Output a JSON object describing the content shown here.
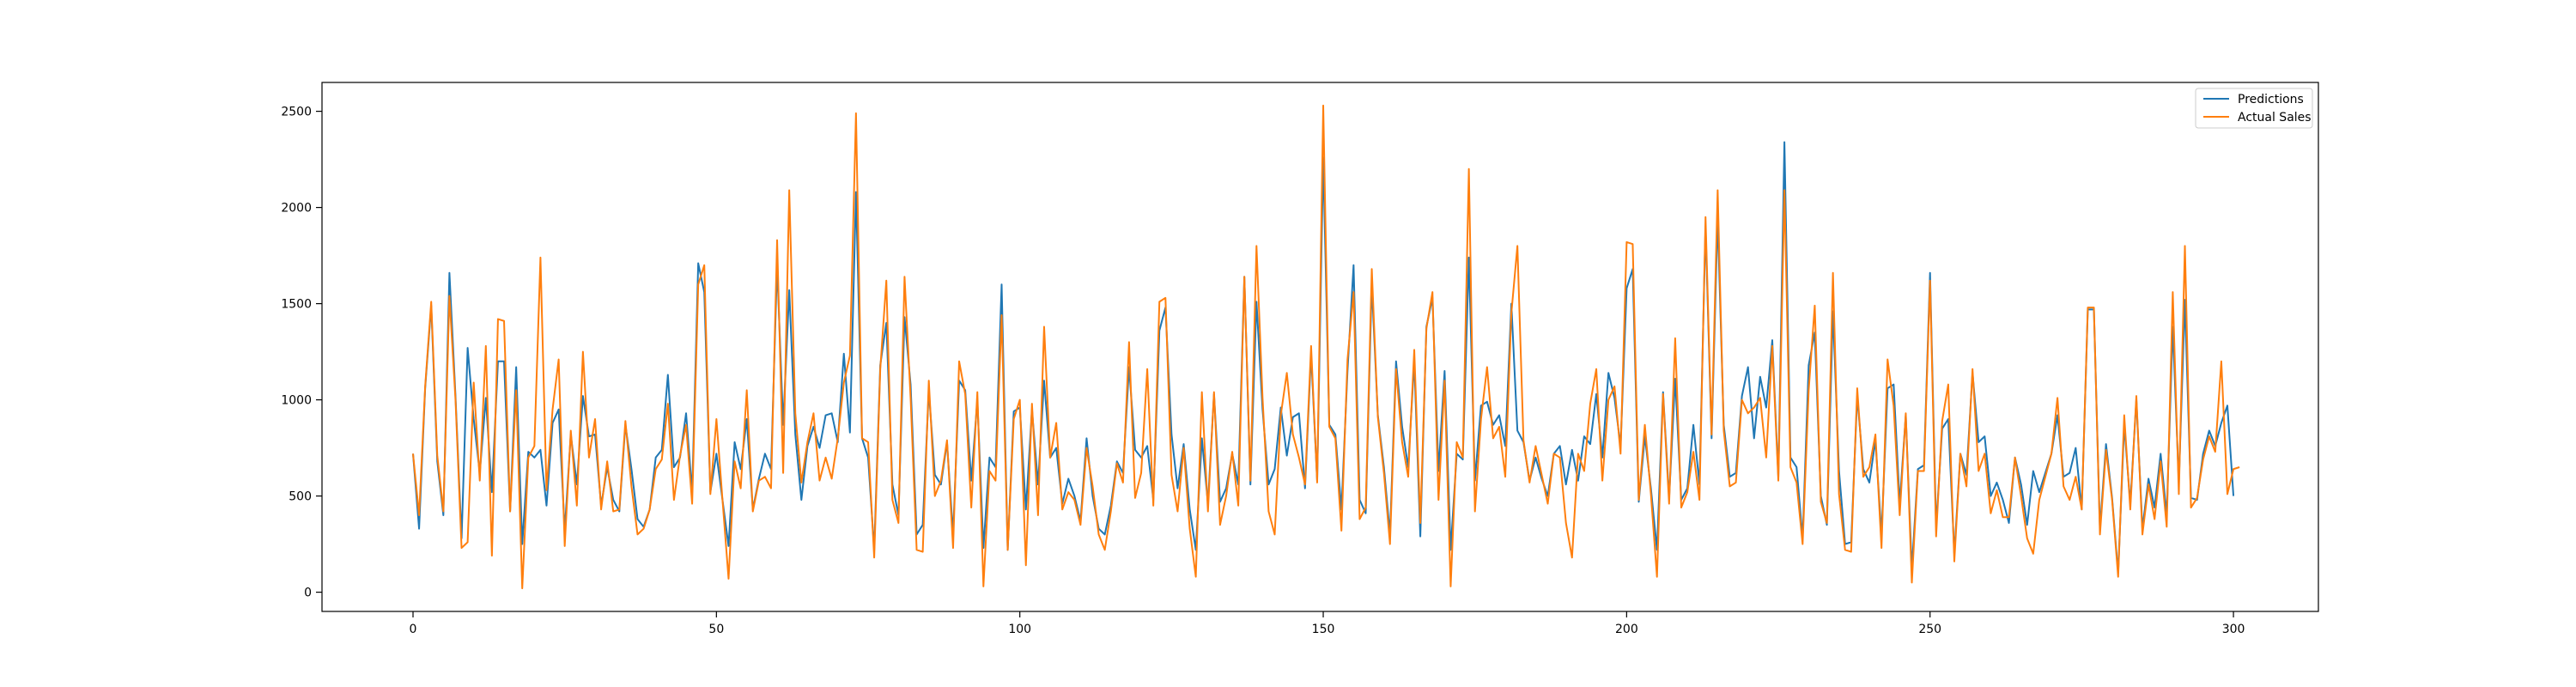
{
  "chart_data": {
    "type": "line",
    "title": "",
    "xlabel": "",
    "ylabel": "",
    "xlim": [
      -15,
      314
    ],
    "ylim": [
      -100,
      2650
    ],
    "xticks": [
      0,
      50,
      100,
      150,
      200,
      250,
      300
    ],
    "yticks": [
      0,
      500,
      1000,
      1500,
      2000,
      2500
    ],
    "grid": false,
    "legend_position": "top-right",
    "series": [
      {
        "name": "Predictions",
        "color": "#1f77b4",
        "values": [
          720,
          330,
          1060,
          1490,
          680,
          400,
          1660,
          1020,
          280,
          1270,
          900,
          620,
          1010,
          520,
          1200,
          1200,
          420,
          1170,
          250,
          730,
          700,
          740,
          450,
          880,
          950,
          320,
          820,
          560,
          1020,
          810,
          820,
          450,
          650,
          480,
          420,
          870,
          640,
          380,
          340,
          430,
          700,
          740,
          1130,
          650,
          700,
          930,
          520,
          1710,
          1560,
          520,
          720,
          480,
          240,
          780,
          640,
          900,
          430,
          590,
          720,
          640,
          1700,
          870,
          1570,
          820,
          480,
          760,
          860,
          750,
          920,
          930,
          780,
          1240,
          830,
          2080,
          800,
          700,
          220,
          1180,
          1400,
          560,
          400,
          1430,
          1080,
          300,
          350,
          1050,
          610,
          560,
          780,
          300,
          1100,
          1050,
          580,
          1000,
          230,
          700,
          650,
          1600,
          220,
          940,
          960,
          430,
          950,
          560,
          1100,
          700,
          750,
          460,
          590,
          500,
          370,
          800,
          500,
          330,
          300,
          450,
          680,
          620,
          1170,
          740,
          700,
          760,
          480,
          1360,
          1480,
          820,
          540,
          770,
          430,
          220,
          800,
          460,
          1030,
          470,
          540,
          720,
          560,
          1640,
          560,
          1510,
          950,
          560,
          640,
          960,
          710,
          910,
          930,
          540,
          1240,
          580,
          2260,
          870,
          820,
          430,
          1150,
          1700,
          480,
          410,
          1600,
          920,
          650,
          300,
          1200,
          860,
          650,
          1200,
          290,
          1380,
          1530,
          630,
          1150,
          220,
          720,
          690,
          1740,
          580,
          970,
          990,
          870,
          920,
          760,
          1500,
          840,
          780,
          580,
          700,
          590,
          500,
          720,
          760,
          560,
          740,
          580,
          810,
          770,
          1030,
          700,
          1140,
          1010,
          760,
          1580,
          1680,
          470,
          810,
          540,
          220,
          1040,
          490,
          1110,
          480,
          540,
          870,
          560,
          1900,
          800,
          1950,
          870,
          600,
          620,
          1020,
          1170,
          800,
          1120,
          960,
          1310,
          600,
          2340,
          700,
          650,
          280,
          1180,
          1350,
          500,
          350,
          1460,
          630,
          250,
          260,
          1020,
          640,
          570,
          790,
          300,
          1060,
          1080,
          460,
          920,
          120,
          640,
          660,
          1660,
          340,
          850,
          900,
          200,
          720,
          610,
          1140,
          780,
          810,
          500,
          570,
          480,
          360,
          700,
          560,
          350,
          630,
          520,
          620,
          720,
          920,
          600,
          620,
          750,
          430,
          1470,
          1470,
          330,
          770,
          490,
          100,
          870,
          460,
          1000,
          330,
          590,
          440,
          720,
          400,
          1380,
          570,
          1520,
          490,
          480,
          720,
          840,
          760,
          880,
          970,
          500
        ]
      },
      {
        "name": "Actual Sales",
        "color": "#ff7f0e",
        "values": [
          720,
          400,
          1070,
          1510,
          710,
          420,
          1540,
          1000,
          230,
          260,
          1090,
          580,
          1280,
          190,
          1420,
          1410,
          420,
          1050,
          20,
          700,
          760,
          1740,
          530,
          950,
          1210,
          240,
          840,
          450,
          1250,
          700,
          900,
          430,
          680,
          420,
          430,
          890,
          550,
          300,
          330,
          430,
          640,
          690,
          980,
          480,
          710,
          870,
          460,
          1600,
          1700,
          510,
          900,
          480,
          70,
          680,
          540,
          1050,
          420,
          580,
          600,
          540,
          1830,
          620,
          2090,
          930,
          570,
          780,
          930,
          580,
          700,
          590,
          800,
          1090,
          1230,
          2490,
          800,
          780,
          180,
          1160,
          1620,
          480,
          360,
          1640,
          1010,
          220,
          210,
          1100,
          500,
          580,
          790,
          230,
          1200,
          1030,
          440,
          1040,
          30,
          630,
          580,
          1440,
          220,
          900,
          1000,
          140,
          980,
          400,
          1380,
          700,
          880,
          430,
          520,
          480,
          350,
          750,
          550,
          300,
          220,
          420,
          670,
          570,
          1300,
          490,
          620,
          1160,
          450,
          1510,
          1530,
          610,
          420,
          750,
          330,
          80,
          1040,
          420,
          1040,
          350,
          500,
          730,
          450,
          1640,
          580,
          1800,
          1010,
          420,
          300,
          920,
          1140,
          820,
          700,
          560,
          1280,
          570,
          2530,
          860,
          800,
          320,
          1210,
          1560,
          380,
          440,
          1680,
          910,
          620,
          250,
          1160,
          780,
          600,
          1260,
          360,
          1370,
          1560,
          480,
          1100,
          30,
          780,
          700,
          2200,
          420,
          900,
          1170,
          800,
          860,
          600,
          1450,
          1800,
          790,
          570,
          760,
          610,
          460,
          720,
          700,
          360,
          180,
          720,
          630,
          980,
          1160,
          580,
          1000,
          1070,
          720,
          1820,
          1810,
          480,
          870,
          510,
          80,
          1030,
          460,
          1320,
          440,
          520,
          730,
          480,
          1950,
          820,
          2090,
          840,
          550,
          570,
          1000,
          930,
          960,
          1010,
          700,
          1280,
          580,
          2090,
          650,
          570,
          250,
          1050,
          1490,
          470,
          360,
          1660,
          510,
          220,
          210,
          1060,
          600,
          650,
          820,
          230,
          1210,
          970,
          400,
          930,
          50,
          630,
          630,
          1620,
          290,
          890,
          1080,
          160,
          720,
          550,
          1160,
          630,
          720,
          410,
          530,
          390,
          390,
          700,
          500,
          280,
          200,
          480,
          600,
          720,
          1010,
          550,
          480,
          600,
          430,
          1480,
          1480,
          300,
          740,
          480,
          80,
          920,
          430,
          1020,
          300,
          560,
          380,
          680,
          340,
          1560,
          510,
          1800,
          440,
          490,
          690,
          810,
          730,
          1200,
          510,
          640,
          650
        ]
      }
    ]
  }
}
